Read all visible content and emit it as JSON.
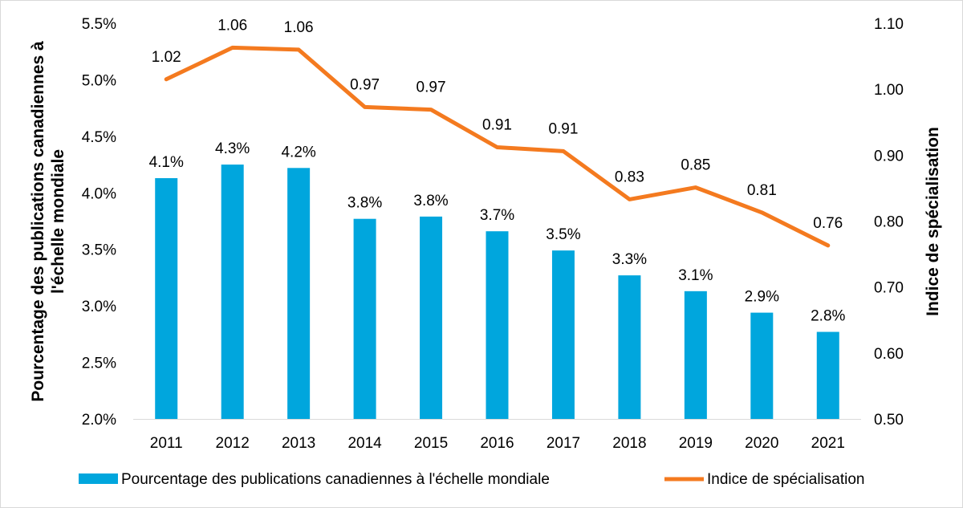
{
  "chart_data": {
    "type": "bar",
    "categories": [
      "2011",
      "2012",
      "2013",
      "2014",
      "2015",
      "2016",
      "2017",
      "2018",
      "2019",
      "2020",
      "2021"
    ],
    "series": [
      {
        "name": "Pourcentage des publications canadiennes à l'échelle mondiale",
        "type": "bar",
        "axis": "left",
        "color": "#00a6dd",
        "values": [
          4.13,
          4.25,
          4.22,
          3.77,
          3.79,
          3.66,
          3.49,
          3.27,
          3.13,
          2.94,
          2.77
        ],
        "labels": [
          "4.1%",
          "4.3%",
          "4.2%",
          "3.8%",
          "3.8%",
          "3.7%",
          "3.5%",
          "3.3%",
          "3.1%",
          "2.9%",
          "2.8%"
        ]
      },
      {
        "name": "Indice de spécialisation",
        "type": "line",
        "axis": "right",
        "color": "#f47a1f",
        "values": [
          1.015,
          1.063,
          1.06,
          0.973,
          0.969,
          0.912,
          0.906,
          0.833,
          0.851,
          0.813,
          0.763
        ],
        "labels": [
          "1.02",
          "1.06",
          "1.06",
          "0.97",
          "0.97",
          "0.91",
          "0.91",
          "0.83",
          "0.85",
          "0.81",
          "0.76"
        ]
      }
    ],
    "y_left": {
      "label_line1": "Pourcentage des publications canadiennes à",
      "label_line2": "l'échelle mondiale",
      "ylim": [
        2.0,
        5.5
      ],
      "ticks": [
        "5.5%",
        "5.0%",
        "4.5%",
        "4.0%",
        "3.5%",
        "3.0%",
        "2.5%",
        "2.0%"
      ]
    },
    "y_right": {
      "label": "Indice de spécialisation",
      "ylim": [
        0.5,
        1.1
      ],
      "ticks": [
        "1.10",
        "1.00",
        "0.90",
        "0.80",
        "0.70",
        "0.60",
        "0.50"
      ]
    },
    "grid": false,
    "legend_position": "bottom"
  }
}
